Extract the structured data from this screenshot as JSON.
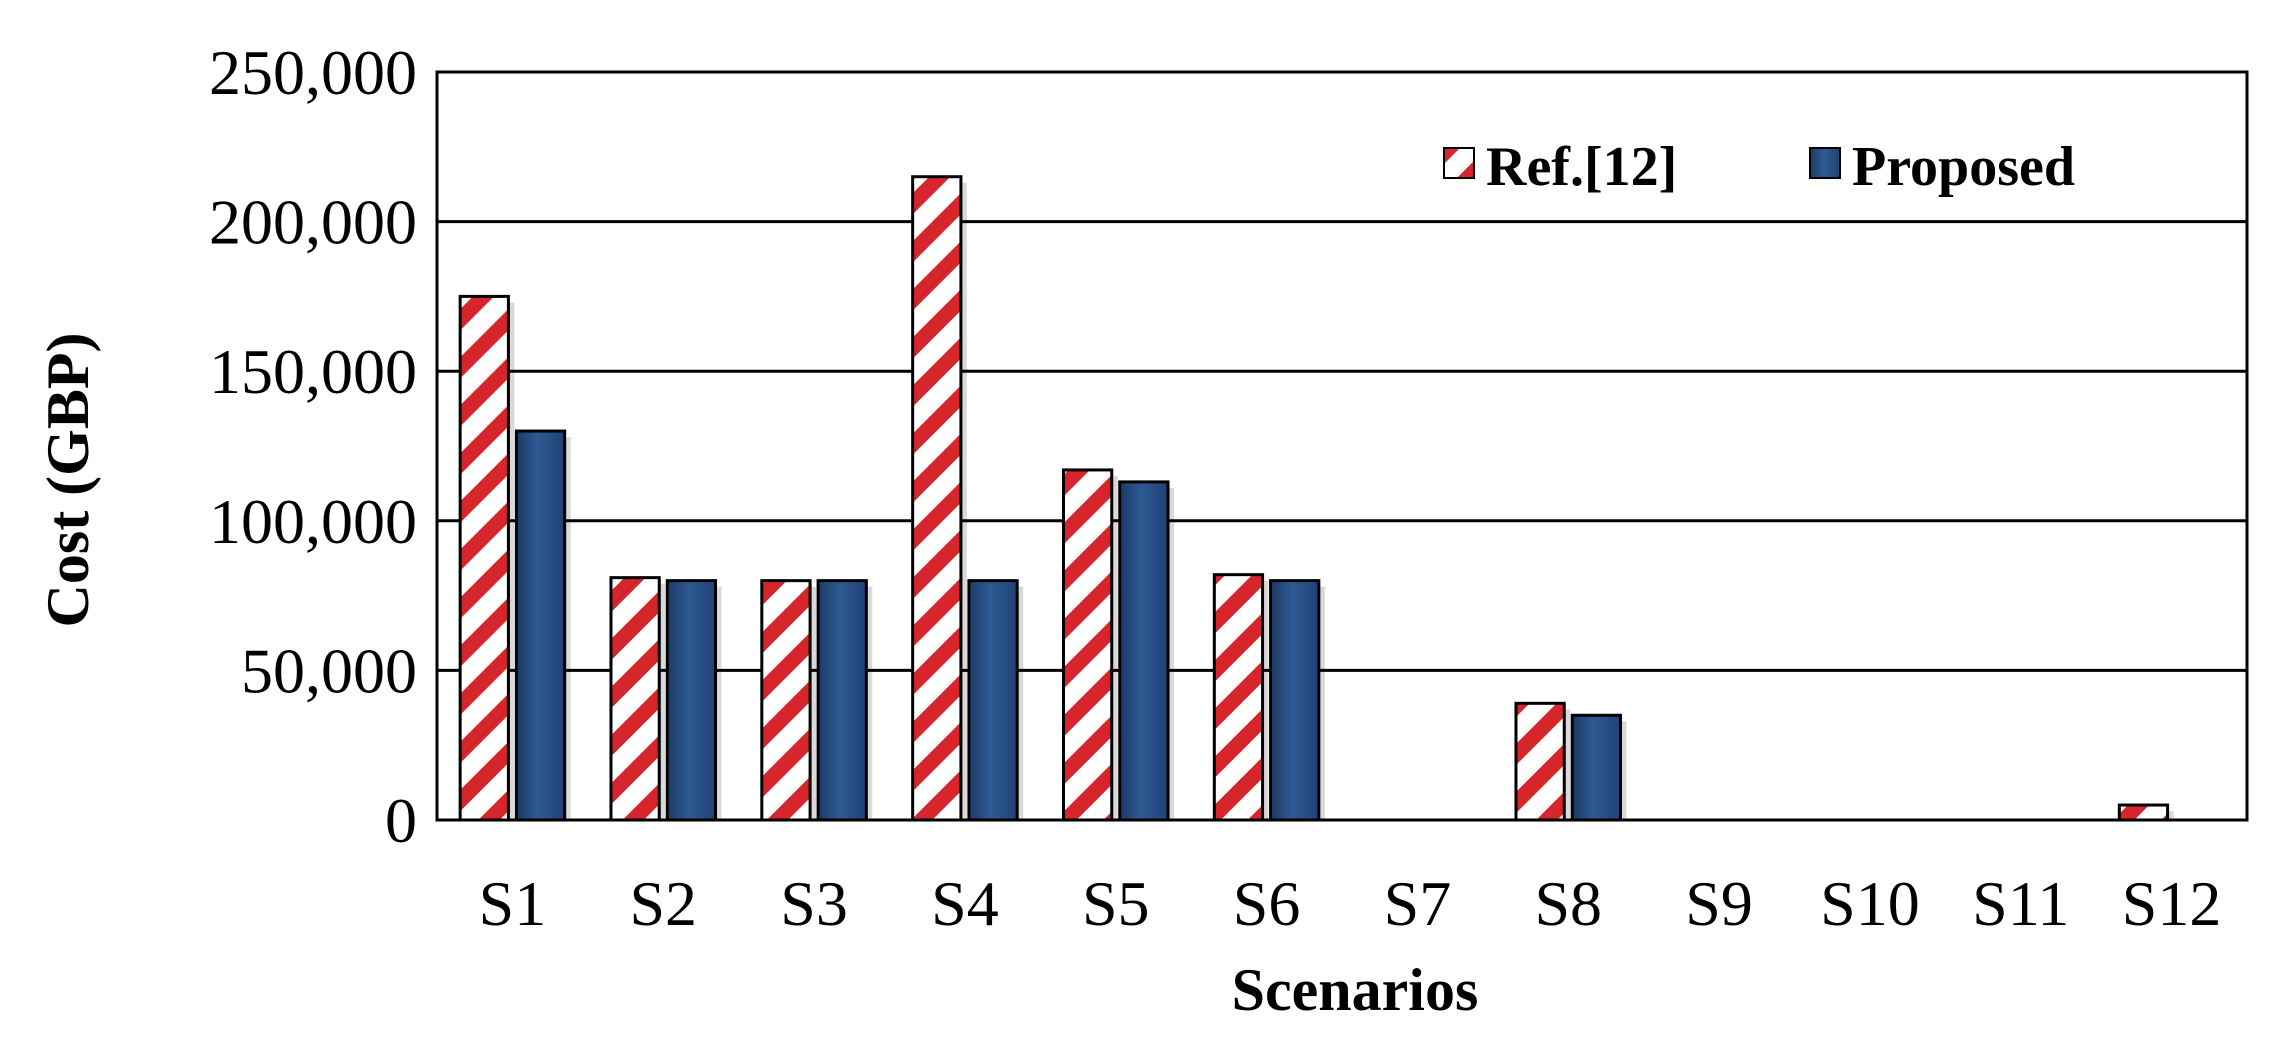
{
  "chart_data": {
    "type": "bar",
    "xlabel": "Scenarios",
    "ylabel": "Cost (GBP)",
    "ylim": [
      0,
      250000
    ],
    "y_ticks": [
      0,
      50000,
      100000,
      150000,
      200000,
      250000
    ],
    "y_tick_labels": [
      "0",
      "50,000",
      "100,000",
      "150,000",
      "200,000",
      "250,000"
    ],
    "categories": [
      "S1",
      "S2",
      "S3",
      "S4",
      "S5",
      "S6",
      "S7",
      "S8",
      "S9",
      "S10",
      "S11",
      "S12"
    ],
    "series": [
      {
        "name": "Ref.[12]",
        "pattern": "red-white diagonal stripes",
        "values": [
          175000,
          81000,
          80000,
          215000,
          117000,
          82000,
          0,
          39000,
          0,
          0,
          0,
          5000
        ]
      },
      {
        "name": "Proposed",
        "color": "#2e5a93",
        "values": [
          130000,
          80000,
          80000,
          80000,
          113000,
          80000,
          0,
          35000,
          0,
          0,
          0,
          0
        ]
      }
    ],
    "grid": true,
    "legend_position": "top-right"
  },
  "colors": {
    "stripe_red": "#d7262b",
    "bar_blue": "#2e5a93",
    "bar_blue_dark": "#1c3a66",
    "grid": "#000000"
  }
}
